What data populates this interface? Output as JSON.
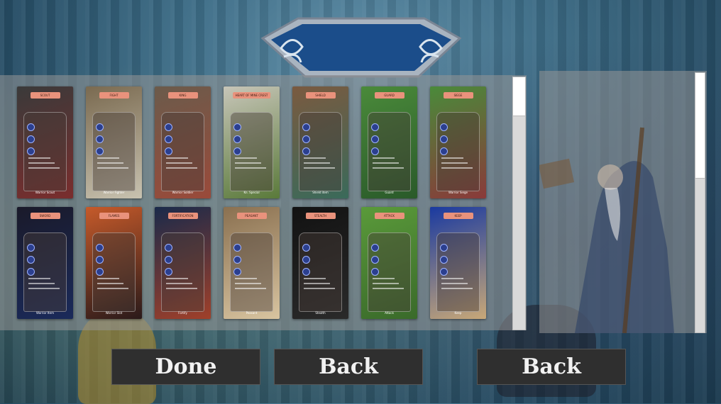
{
  "cards": [
    {
      "name": "SCOUT",
      "bg": [
        "#3a3a3a",
        "#7a2d2d"
      ],
      "foot": "Warrior Scout"
    },
    {
      "name": "FIGHT",
      "bg": [
        "#7a6a50",
        "#c8c2b0"
      ],
      "foot": "Warrior Fighter"
    },
    {
      "name": "KING",
      "bg": [
        "#6b5b4b",
        "#9a4a3a"
      ],
      "foot": "Warrior Soldier"
    },
    {
      "name": "HEART OF MINE CREST",
      "bg": [
        "#c7c5b8",
        "#5a7a3a"
      ],
      "foot": "Kn. Special"
    },
    {
      "name": "SHIELD",
      "bg": [
        "#7a5a40",
        "#3a6a5a"
      ],
      "foot": "Shield item"
    },
    {
      "name": "GUARD",
      "bg": [
        "#4a8a3a",
        "#2a5a2a"
      ],
      "foot": "Guard"
    },
    {
      "name": "SIEGE",
      "bg": [
        "#4a8a3a",
        "#8a3a3a"
      ],
      "foot": "Warrior Siege"
    },
    {
      "name": "SWORD",
      "bg": [
        "#1a1a2a",
        "#1a2a5a"
      ],
      "foot": "Warrior Item"
    },
    {
      "name": "FLAMES",
      "bg": [
        "#c55a2a",
        "#2a1a1a"
      ],
      "foot": "Warrior Slot"
    },
    {
      "name": "FORTIFICATION",
      "bg": [
        "#1a2a4a",
        "#a0402a"
      ],
      "foot": "Fortify"
    },
    {
      "name": "PEASANT",
      "bg": [
        "#8a7050",
        "#d8c4a0"
      ],
      "foot": "Peasant"
    },
    {
      "name": "STEALTH",
      "bg": [
        "#121212",
        "#2a2a2a"
      ],
      "foot": "Stealth"
    },
    {
      "name": "ATTACK",
      "bg": [
        "#5a9a3a",
        "#3a6a2a"
      ],
      "foot": "Attack"
    },
    {
      "name": "KEEP",
      "bg": [
        "#1a3aa0",
        "#c8a878"
      ],
      "foot": "Keep"
    }
  ],
  "buttons": {
    "done": "Done",
    "back_1": "Back",
    "back_2": "Back"
  },
  "colors": {
    "panel": "#969696",
    "button_bg": "#2f2f2f",
    "banner": "#1b4d8a"
  }
}
